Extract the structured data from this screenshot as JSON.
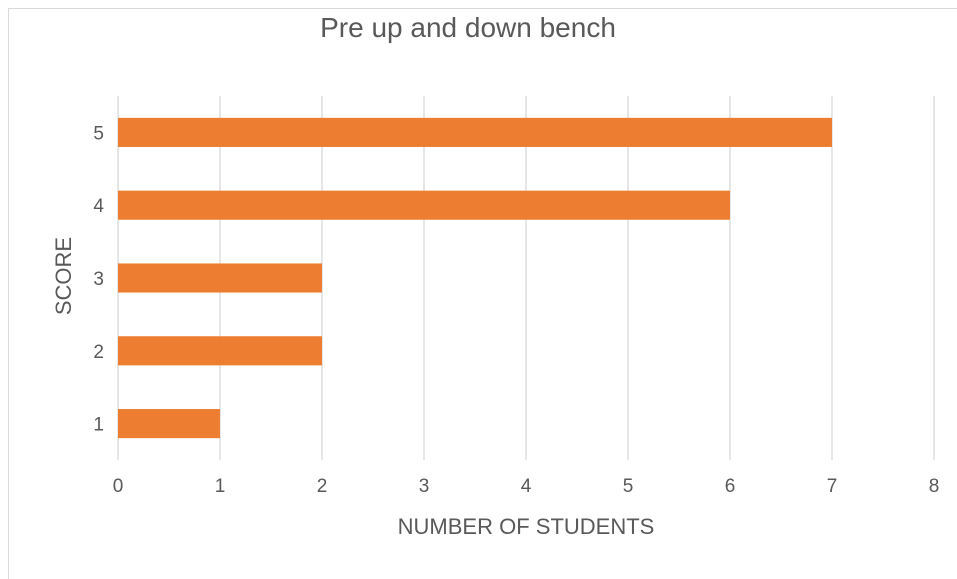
{
  "chart_data": {
    "type": "bar",
    "orientation": "horizontal",
    "title": "Pre up and down bench",
    "xlabel": "NUMBER OF STUDENTS",
    "ylabel": "SCORE",
    "categories": [
      "1",
      "2",
      "3",
      "4",
      "5"
    ],
    "values": [
      1,
      2,
      2,
      6,
      7
    ],
    "xlim": [
      0,
      8
    ],
    "x_ticks": [
      0,
      1,
      2,
      3,
      4,
      5,
      6,
      7,
      8
    ],
    "grid": true,
    "legend": "none",
    "bar_color": "#ED7D31"
  }
}
